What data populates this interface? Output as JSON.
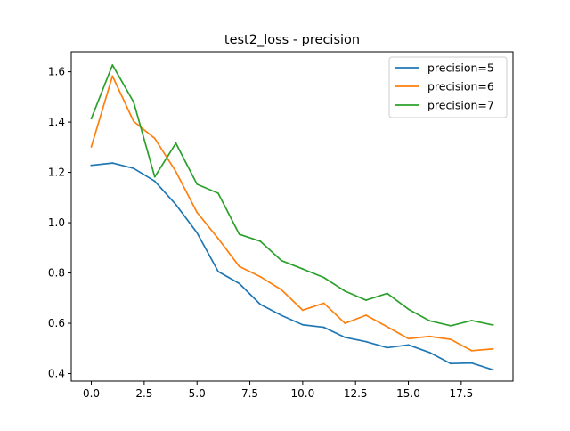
{
  "chart_data": {
    "type": "line",
    "title": "test2_loss - precision",
    "xlabel": "",
    "ylabel": "",
    "x": [
      0,
      1,
      2,
      3,
      4,
      5,
      6,
      7,
      8,
      9,
      10,
      11,
      12,
      13,
      14,
      15,
      16,
      17,
      18,
      19
    ],
    "xlim": [
      -0.95,
      19.95
    ],
    "ylim": [
      0.37,
      1.68
    ],
    "xticks": [
      0.0,
      2.5,
      5.0,
      7.5,
      10.0,
      12.5,
      15.0,
      17.5
    ],
    "xtick_labels": [
      "0.0",
      "2.5",
      "5.0",
      "7.5",
      "10.0",
      "12.5",
      "15.0",
      "17.5"
    ],
    "yticks": [
      0.4,
      0.6,
      0.8,
      1.0,
      1.2,
      1.4,
      1.6
    ],
    "ytick_labels": [
      "0.4",
      "0.6",
      "0.8",
      "1.0",
      "1.2",
      "1.4",
      "1.6"
    ],
    "grid": false,
    "legend_position": "top-right",
    "series": [
      {
        "name": "precision=5",
        "color": "#1f77b4",
        "values": [
          1.228,
          1.237,
          1.216,
          1.165,
          1.072,
          0.96,
          0.806,
          0.758,
          0.675,
          0.631,
          0.594,
          0.584,
          0.544,
          0.527,
          0.503,
          0.514,
          0.484,
          0.44,
          0.442,
          0.415
        ]
      },
      {
        "name": "precision=6",
        "color": "#ff7f0e",
        "values": [
          1.302,
          1.583,
          1.403,
          1.335,
          1.203,
          1.041,
          0.937,
          0.826,
          0.785,
          0.733,
          0.652,
          0.68,
          0.6,
          0.632,
          0.586,
          0.539,
          0.548,
          0.536,
          0.491,
          0.498
        ]
      },
      {
        "name": "precision=7",
        "color": "#2ca02c",
        "values": [
          1.414,
          1.627,
          1.48,
          1.182,
          1.316,
          1.153,
          1.117,
          0.954,
          0.926,
          0.849,
          0.816,
          0.782,
          0.728,
          0.692,
          0.719,
          0.656,
          0.61,
          0.59,
          0.611,
          0.593
        ]
      }
    ]
  }
}
